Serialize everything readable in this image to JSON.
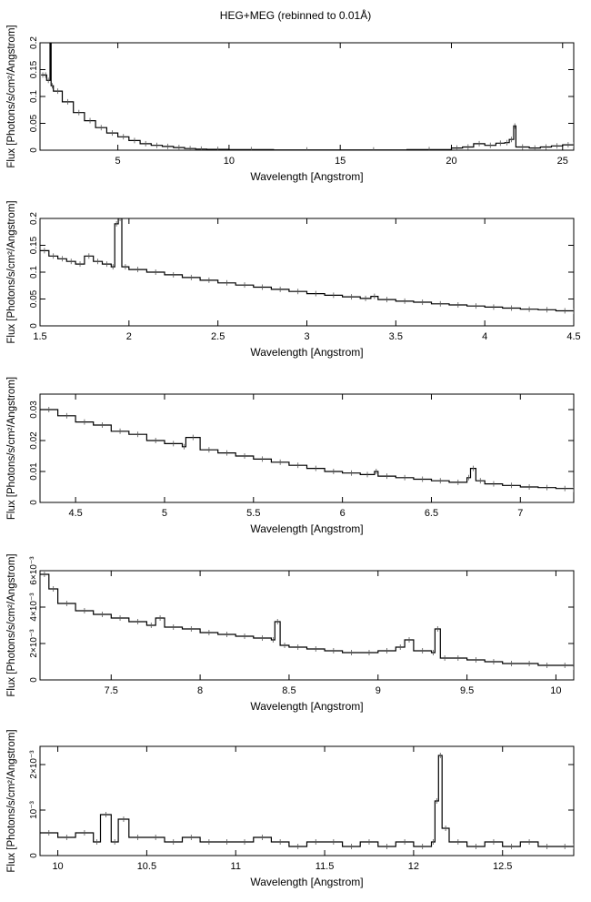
{
  "title": "HEG+MEG (rebinned to 0.01Å)",
  "chart_data": [
    {
      "type": "line",
      "xlabel": "Wavelength [Angstrom]",
      "ylabel": "Flux [Photons/s/cm²/Angstrom]",
      "xlim": [
        1.5,
        25.5
      ],
      "ylim": [
        0,
        0.2
      ],
      "xticks": [
        5,
        10,
        15,
        20,
        25
      ],
      "xtick_labels": [
        "5",
        "10",
        "15",
        "20",
        "25"
      ],
      "yticks": [
        0,
        0.05,
        0.1,
        0.15,
        0.2
      ],
      "ytick_labels": [
        "0",
        "0.05",
        "0.1",
        "0.15",
        "0.2"
      ],
      "series": [
        {
          "x": [
            1.55,
            1.7,
            1.8,
            1.95,
            2.0,
            2.1,
            2.5,
            3.0,
            3.5,
            4.0,
            4.5,
            5.0,
            5.5,
            6.0,
            6.5,
            7.0,
            7.5,
            8.0,
            8.5,
            9.0,
            10.0,
            12.0,
            15.0,
            18.0,
            20.0,
            20.5,
            21.0,
            21.5,
            22.0,
            22.4,
            22.6,
            22.8,
            22.9,
            23.5,
            24.0,
            24.5,
            25.0,
            25.5
          ],
          "y": [
            0.14,
            0.14,
            0.13,
            0.21,
            0.12,
            0.11,
            0.09,
            0.07,
            0.055,
            0.042,
            0.032,
            0.025,
            0.018,
            0.012,
            0.009,
            0.007,
            0.005,
            0.003,
            0.002,
            0.0015,
            0.001,
            0.0005,
            0.0005,
            0.001,
            0.004,
            0.006,
            0.012,
            0.009,
            0.013,
            0.014,
            0.02,
            0.045,
            0.006,
            0.004,
            0.006,
            0.008,
            0.01,
            0.01
          ]
        }
      ]
    },
    {
      "type": "line",
      "xlabel": "Wavelength [Angstrom]",
      "ylabel": "Flux [Photons/s/cm²/Angstrom]",
      "xlim": [
        1.5,
        4.5
      ],
      "ylim": [
        0,
        0.2
      ],
      "xticks": [
        1.5,
        2,
        2.5,
        3,
        3.5,
        4,
        4.5
      ],
      "xtick_labels": [
        "1.5",
        "2",
        "2.5",
        "3",
        "3.5",
        "4",
        "4.5"
      ],
      "yticks": [
        0,
        0.05,
        0.1,
        0.15,
        0.2
      ],
      "ytick_labels": [
        "0",
        "0.05",
        "0.1",
        "0.15",
        "0.2"
      ],
      "series": [
        {
          "x": [
            1.5,
            1.55,
            1.6,
            1.65,
            1.7,
            1.75,
            1.8,
            1.85,
            1.9,
            1.92,
            1.94,
            1.96,
            2.0,
            2.1,
            2.2,
            2.3,
            2.4,
            2.5,
            2.6,
            2.7,
            2.8,
            2.9,
            3.0,
            3.1,
            3.2,
            3.3,
            3.36,
            3.4,
            3.5,
            3.6,
            3.7,
            3.8,
            3.9,
            4.0,
            4.1,
            4.2,
            4.3,
            4.4,
            4.5
          ],
          "y": [
            0.14,
            0.13,
            0.125,
            0.12,
            0.115,
            0.13,
            0.12,
            0.115,
            0.11,
            0.19,
            0.2,
            0.11,
            0.105,
            0.1,
            0.095,
            0.09,
            0.085,
            0.08,
            0.076,
            0.072,
            0.068,
            0.064,
            0.06,
            0.057,
            0.054,
            0.051,
            0.055,
            0.049,
            0.046,
            0.044,
            0.041,
            0.039,
            0.037,
            0.035,
            0.033,
            0.031,
            0.03,
            0.028,
            0.027
          ]
        }
      ]
    },
    {
      "type": "line",
      "xlabel": "Wavelength [Angstrom]",
      "ylabel": "Flux [Photons/s/cm²/Angstrom]",
      "xlim": [
        4.3,
        7.3
      ],
      "ylim": [
        0,
        0.035
      ],
      "xticks": [
        4.5,
        5,
        5.5,
        6,
        6.5,
        7
      ],
      "xtick_labels": [
        "4.5",
        "5",
        "5.5",
        "6",
        "6.5",
        "7"
      ],
      "yticks": [
        0,
        0.01,
        0.02,
        0.03
      ],
      "ytick_labels": [
        "0",
        "0.01",
        "0.02",
        "0.03"
      ],
      "series": [
        {
          "x": [
            4.3,
            4.4,
            4.5,
            4.6,
            4.7,
            4.8,
            4.9,
            5.0,
            5.1,
            5.12,
            5.2,
            5.3,
            5.4,
            5.5,
            5.6,
            5.7,
            5.8,
            5.9,
            6.0,
            6.1,
            6.18,
            6.2,
            6.3,
            6.4,
            6.5,
            6.6,
            6.7,
            6.72,
            6.75,
            6.8,
            6.9,
            7.0,
            7.1,
            7.2,
            7.3
          ],
          "y": [
            0.03,
            0.028,
            0.026,
            0.025,
            0.023,
            0.022,
            0.02,
            0.019,
            0.018,
            0.021,
            0.017,
            0.016,
            0.015,
            0.014,
            0.013,
            0.012,
            0.011,
            0.01,
            0.0095,
            0.009,
            0.01,
            0.0085,
            0.008,
            0.0075,
            0.007,
            0.0065,
            0.008,
            0.011,
            0.007,
            0.006,
            0.0055,
            0.005,
            0.0048,
            0.0045,
            0.0042
          ]
        }
      ]
    },
    {
      "type": "line",
      "xlabel": "Wavelength [Angstrom]",
      "ylabel": "Flux [Photons/s/cm²/Angstrom]",
      "xlim": [
        7.1,
        10.1
      ],
      "ylim": [
        0,
        0.006
      ],
      "xticks": [
        7.5,
        8,
        8.5,
        9,
        9.5,
        10
      ],
      "xtick_labels": [
        "7.5",
        "8",
        "8.5",
        "9",
        "9.5",
        "10"
      ],
      "yticks": [
        0,
        0.002,
        0.004,
        0.006
      ],
      "ytick_labels": [
        "0",
        "2×10⁻³",
        "4×10⁻³",
        "6×10⁻³"
      ],
      "series": [
        {
          "x": [
            7.1,
            7.15,
            7.2,
            7.3,
            7.4,
            7.5,
            7.6,
            7.7,
            7.75,
            7.8,
            7.9,
            8.0,
            8.1,
            8.2,
            8.3,
            8.4,
            8.42,
            8.45,
            8.5,
            8.6,
            8.7,
            8.8,
            8.9,
            9.0,
            9.1,
            9.15,
            9.2,
            9.3,
            9.32,
            9.35,
            9.4,
            9.5,
            9.6,
            9.7,
            9.8,
            9.9,
            10.0,
            10.1
          ],
          "y": [
            0.0058,
            0.005,
            0.0042,
            0.0038,
            0.0036,
            0.0034,
            0.0032,
            0.003,
            0.0034,
            0.0029,
            0.0028,
            0.0026,
            0.0025,
            0.0024,
            0.0023,
            0.0022,
            0.0032,
            0.0019,
            0.0018,
            0.0017,
            0.0016,
            0.0015,
            0.0015,
            0.0016,
            0.0018,
            0.0022,
            0.0016,
            0.0015,
            0.0028,
            0.0012,
            0.0012,
            0.0011,
            0.001,
            0.0009,
            0.0009,
            0.0008,
            0.0008,
            0.0007
          ]
        }
      ]
    },
    {
      "type": "line",
      "xlabel": "Wavelength [Angstrom]",
      "ylabel": "Flux [Photons/s/cm²/Angstrom]",
      "xlim": [
        9.9,
        12.9
      ],
      "ylim": [
        0,
        0.0024
      ],
      "xticks": [
        10,
        10.5,
        11,
        11.5,
        12,
        12.5
      ],
      "xtick_labels": [
        "10",
        "10.5",
        "11",
        "11.5",
        "12",
        "12.5"
      ],
      "yticks": [
        0,
        0.001,
        0.002
      ],
      "ytick_labels": [
        "0",
        "10⁻³",
        "2×10⁻³"
      ],
      "series": [
        {
          "x": [
            9.9,
            10.0,
            10.1,
            10.2,
            10.24,
            10.3,
            10.34,
            10.4,
            10.5,
            10.6,
            10.7,
            10.8,
            10.9,
            11.0,
            11.1,
            11.2,
            11.3,
            11.4,
            11.5,
            11.6,
            11.7,
            11.8,
            11.9,
            12.0,
            12.1,
            12.12,
            12.14,
            12.16,
            12.2,
            12.3,
            12.4,
            12.5,
            12.6,
            12.7,
            12.8,
            12.9
          ],
          "y": [
            0.0005,
            0.0004,
            0.0005,
            0.0003,
            0.0009,
            0.0003,
            0.0008,
            0.0004,
            0.0004,
            0.0003,
            0.0004,
            0.0003,
            0.0003,
            0.0003,
            0.0004,
            0.0003,
            0.0002,
            0.0003,
            0.0003,
            0.0002,
            0.0003,
            0.0002,
            0.0003,
            0.0002,
            0.0003,
            0.0012,
            0.0022,
            0.0006,
            0.0003,
            0.0002,
            0.0003,
            0.0002,
            0.0003,
            0.0002,
            0.0002,
            0.0002
          ]
        }
      ]
    }
  ]
}
